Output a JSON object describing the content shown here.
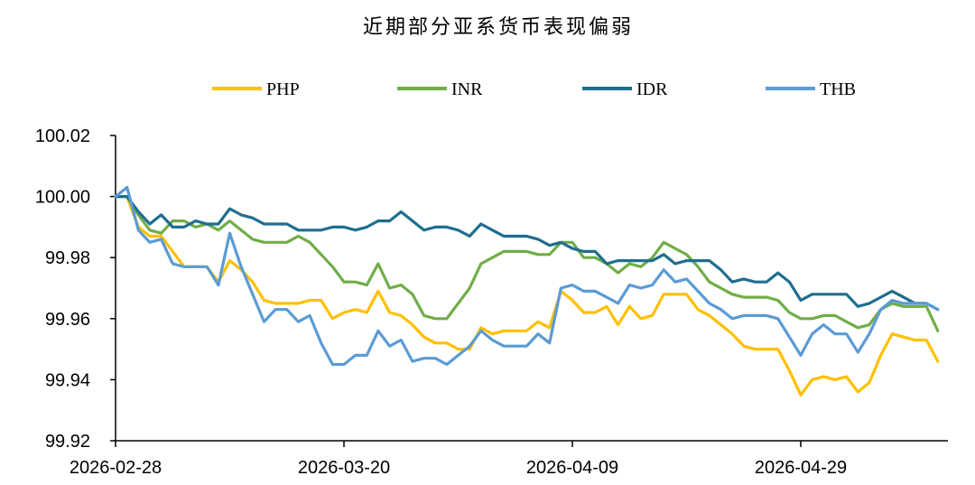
{
  "chart_data": {
    "type": "line",
    "title": "近期部分亚系货币表现偏弱",
    "xlabel": "",
    "ylabel": "",
    "ylim": [
      99.92,
      100.02
    ],
    "y_ticks": [
      "99.92",
      "99.94",
      "99.96",
      "99.98",
      "100.00",
      "100.02"
    ],
    "x_ticks": [
      "2026-02-28",
      "2026-03-20",
      "2026-04-09",
      "2026-04-29"
    ],
    "x_start": "2026-02-28",
    "x_end": "2026-05-11",
    "grid": false,
    "legend_position": "top",
    "series": [
      {
        "name": "PHP",
        "color": "#FFC000",
        "values": [
          100.0,
          100.0,
          99.99,
          99.987,
          99.987,
          99.982,
          99.977,
          99.977,
          99.977,
          99.972,
          99.979,
          99.976,
          99.972,
          99.966,
          99.965,
          99.965,
          99.965,
          99.966,
          99.966,
          99.96,
          99.962,
          99.963,
          99.962,
          99.969,
          99.962,
          99.961,
          99.958,
          99.954,
          99.952,
          99.952,
          99.95,
          99.95,
          99.957,
          99.955,
          99.956,
          99.956,
          99.956,
          99.959,
          99.957,
          99.969,
          99.966,
          99.962,
          99.962,
          99.964,
          99.958,
          99.964,
          99.96,
          99.961,
          99.968,
          99.968,
          99.968,
          99.963,
          99.961,
          99.958,
          99.955,
          99.951,
          99.95,
          99.95,
          99.95,
          99.943,
          99.935,
          99.94,
          99.941,
          99.94,
          99.941,
          99.936,
          99.939,
          99.948,
          99.955,
          99.954,
          99.953,
          99.953,
          99.946
        ]
      },
      {
        "name": "INR",
        "color": "#70AD47",
        "values": [
          100.0,
          100.0,
          99.994,
          99.989,
          99.988,
          99.992,
          99.992,
          99.99,
          99.991,
          99.989,
          99.992,
          99.989,
          99.986,
          99.985,
          99.985,
          99.985,
          99.987,
          99.985,
          99.981,
          99.977,
          99.972,
          99.972,
          99.971,
          99.978,
          99.97,
          99.971,
          99.968,
          99.961,
          99.96,
          99.96,
          99.965,
          99.97,
          99.978,
          99.98,
          99.982,
          99.982,
          99.982,
          99.981,
          99.981,
          99.985,
          99.985,
          99.98,
          99.98,
          99.978,
          99.975,
          99.978,
          99.977,
          99.98,
          99.985,
          99.983,
          99.981,
          99.977,
          99.972,
          99.97,
          99.968,
          99.967,
          99.967,
          99.967,
          99.966,
          99.962,
          99.96,
          99.96,
          99.961,
          99.961,
          99.959,
          99.957,
          99.958,
          99.963,
          99.965,
          99.964,
          99.964,
          99.964,
          99.956
        ]
      },
      {
        "name": "IDR",
        "color": "#1F6E8F",
        "values": [
          100.0,
          100.0,
          99.995,
          99.991,
          99.994,
          99.99,
          99.99,
          99.992,
          99.991,
          99.991,
          99.996,
          99.994,
          99.993,
          99.991,
          99.991,
          99.991,
          99.989,
          99.989,
          99.989,
          99.99,
          99.99,
          99.989,
          99.99,
          99.992,
          99.992,
          99.995,
          99.992,
          99.989,
          99.99,
          99.99,
          99.989,
          99.987,
          99.991,
          99.989,
          99.987,
          99.987,
          99.987,
          99.986,
          99.984,
          99.985,
          99.983,
          99.982,
          99.982,
          99.978,
          99.979,
          99.979,
          99.979,
          99.979,
          99.981,
          99.978,
          99.979,
          99.979,
          99.979,
          99.976,
          99.972,
          99.973,
          99.972,
          99.972,
          99.975,
          99.972,
          99.966,
          99.968,
          99.968,
          99.968,
          99.968,
          99.964,
          99.965,
          99.967,
          99.969,
          99.967,
          99.965,
          99.965,
          99.963
        ]
      },
      {
        "name": "THB",
        "color": "#5B9BD5",
        "values": [
          100.0,
          100.003,
          99.989,
          99.985,
          99.986,
          99.978,
          99.977,
          99.977,
          99.977,
          99.971,
          99.988,
          99.977,
          99.968,
          99.959,
          99.963,
          99.963,
          99.959,
          99.961,
          99.952,
          99.945,
          99.945,
          99.948,
          99.948,
          99.956,
          99.951,
          99.953,
          99.946,
          99.947,
          99.947,
          99.945,
          99.948,
          99.951,
          99.956,
          99.953,
          99.951,
          99.951,
          99.951,
          99.955,
          99.952,
          99.97,
          99.971,
          99.969,
          99.969,
          99.967,
          99.965,
          99.971,
          99.97,
          99.971,
          99.976,
          99.972,
          99.973,
          99.969,
          99.965,
          99.963,
          99.96,
          99.961,
          99.961,
          99.961,
          99.96,
          99.954,
          99.948,
          99.955,
          99.958,
          99.955,
          99.955,
          99.949,
          99.955,
          99.963,
          99.966,
          99.965,
          99.965,
          99.965,
          99.963
        ]
      }
    ]
  }
}
